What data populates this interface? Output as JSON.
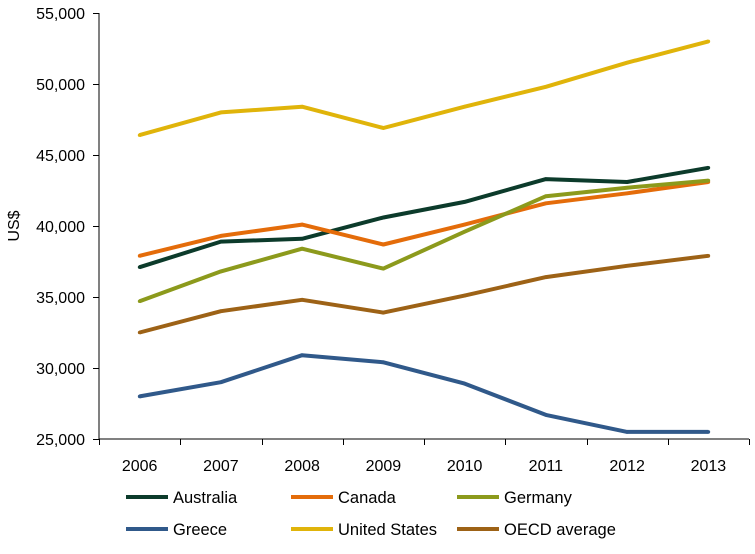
{
  "chart_data": {
    "type": "line",
    "ylabel": "US$",
    "categories": [
      "2006",
      "2007",
      "2008",
      "2009",
      "2010",
      "2011",
      "2012",
      "2013"
    ],
    "ylim": [
      25000,
      55000
    ],
    "yticks": [
      25000,
      30000,
      35000,
      40000,
      45000,
      50000,
      55000
    ],
    "ytick_labels": [
      "25,000",
      "30,000",
      "35,000",
      "40,000",
      "45,000",
      "50,000",
      "55,000"
    ],
    "grid": false,
    "legend": "bottom",
    "series": [
      {
        "name": "Australia",
        "color": "#0c3b2b",
        "values": [
          37100,
          38900,
          39100,
          40600,
          41700,
          43300,
          43100,
          44100
        ]
      },
      {
        "name": "Canada",
        "color": "#e46c0a",
        "values": [
          37900,
          39300,
          40100,
          38700,
          40100,
          41600,
          42300,
          43100
        ]
      },
      {
        "name": "Germany",
        "color": "#8c9a1c",
        "values": [
          34700,
          36800,
          38400,
          37000,
          39600,
          42100,
          42700,
          43200
        ]
      },
      {
        "name": "Greece",
        "color": "#30598a",
        "values": [
          28000,
          29000,
          30900,
          30400,
          28900,
          26700,
          25500,
          25500
        ]
      },
      {
        "name": "United States",
        "color": "#e0b40a",
        "values": [
          46400,
          48000,
          48400,
          46900,
          48400,
          49800,
          51500,
          53000
        ]
      },
      {
        "name": "OECD average",
        "color": "#9d6216",
        "values": [
          32500,
          34000,
          34800,
          33900,
          35100,
          36400,
          37200,
          37900
        ]
      }
    ]
  }
}
